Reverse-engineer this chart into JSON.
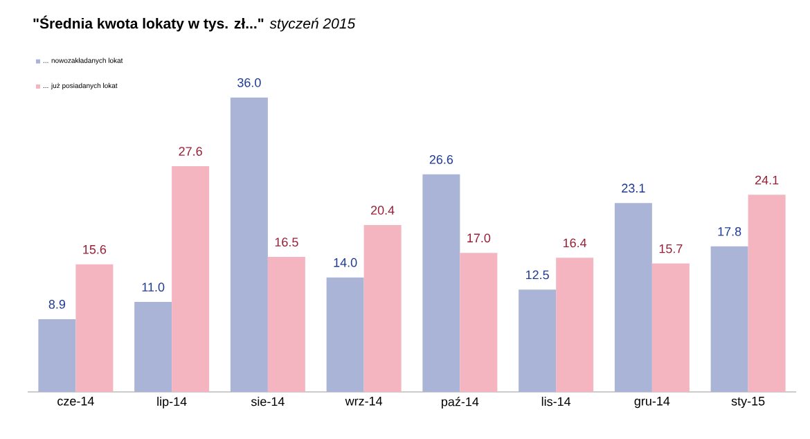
{
  "chart_data": {
    "type": "bar",
    "title": "**\"Średnia kwota lokaty w tys. zł...\"** *styczeń 2015*",
    "categories": [
      "cze-14",
      "lip-14",
      "sie-14",
      "wrz-14",
      "paź-14",
      "lis-14",
      "gru-14",
      "sty-15"
    ],
    "series": [
      {
        "name": "... nowozakładanych lokat",
        "color": "#aab4d6",
        "values": [
          8.9,
          11.0,
          36.0,
          14.0,
          26.6,
          12.5,
          23.1,
          17.8
        ],
        "value_labels": [
          "8.9",
          "11.0",
          "36.0",
          "14.0",
          "26.6",
          "12.5",
          "23.1",
          "17.8"
        ]
      },
      {
        "name": "... już posiadanych lokat",
        "color": "#f4b5c1",
        "values": [
          15.6,
          27.6,
          16.5,
          20.4,
          17.0,
          16.4,
          15.7,
          24.1
        ],
        "value_labels": [
          "15.6",
          "27.6",
          "16.5",
          "20.4",
          "17.0",
          "16.4",
          "15.7",
          "24.1"
        ]
      }
    ],
    "legend": "top left"
  }
}
